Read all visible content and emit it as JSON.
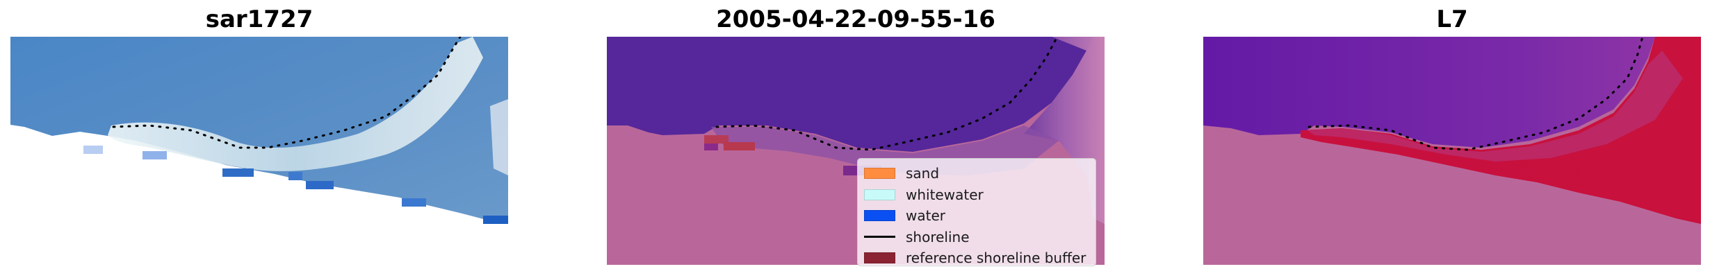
{
  "panels": [
    {
      "title": "sar1727"
    },
    {
      "title": "2005-04-22-09-55-16"
    },
    {
      "title": "L7"
    }
  ],
  "legend": {
    "items": [
      {
        "label": "sand",
        "color": "#ff8c3f",
        "kind": "patch"
      },
      {
        "label": "whitewater",
        "color": "#c9fafa",
        "kind": "patch"
      },
      {
        "label": "water",
        "color": "#0a4ff2",
        "kind": "patch"
      },
      {
        "label": "shoreline",
        "color": "#000000",
        "kind": "line"
      },
      {
        "label": "reference shoreline buffer",
        "color": "#8b2332",
        "kind": "patch"
      }
    ]
  },
  "colors": {
    "nodata_pink": "#b9679a",
    "sea_blue": "#4b84c0",
    "class_water_purple": "#55279a",
    "index_purple": "#6c1ea8",
    "index_red": "#c8103f"
  }
}
